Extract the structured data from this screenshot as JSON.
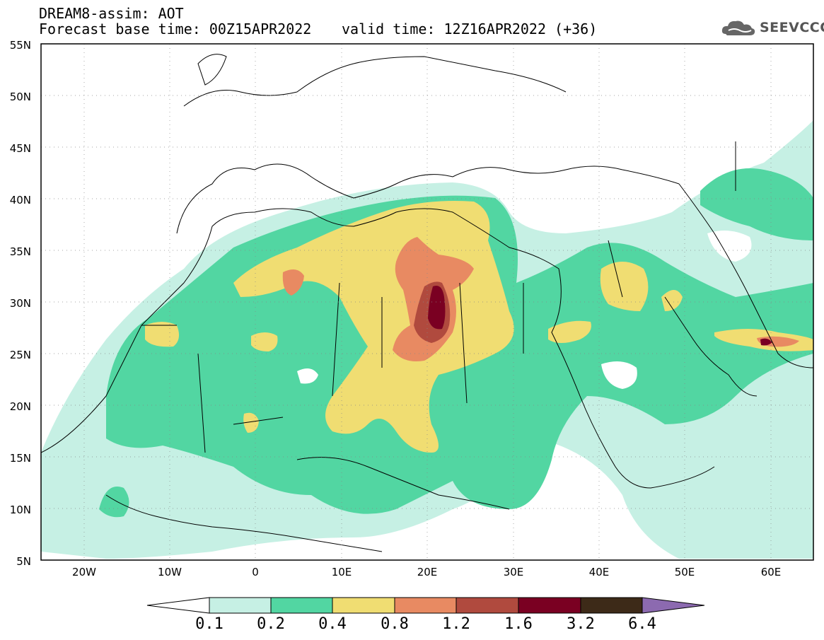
{
  "header": {
    "title": "DREAM8-assim: AOT",
    "base_time": "Forecast base time: 00Z15APR2022",
    "valid_time": "valid time: 12Z16APR2022 (+36)"
  },
  "logo": {
    "text": "SEEVCCC",
    "icon": "cloud-icon"
  },
  "map": {
    "lat_labels": [
      "55N",
      "50N",
      "45N",
      "40N",
      "35N",
      "30N",
      "25N",
      "20N",
      "15N",
      "10N",
      "5N"
    ],
    "lon_labels": [
      "20W",
      "10W",
      "0",
      "10E",
      "20E",
      "30E",
      "40E",
      "50E",
      "60E"
    ],
    "extent": {
      "lon": [
        -25,
        65
      ],
      "lat": [
        5,
        55
      ]
    }
  },
  "colorbar": {
    "labels": [
      "0.1",
      "0.2",
      "0.4",
      "0.8",
      "1.2",
      "1.6",
      "3.2",
      "6.4"
    ],
    "colors": [
      "#ffffff",
      "#c6f0e4",
      "#52d6a2",
      "#f0dd72",
      "#e88a62",
      "#b04a3e",
      "#7a0022",
      "#3d2a18",
      "#8c6ab0"
    ]
  }
}
